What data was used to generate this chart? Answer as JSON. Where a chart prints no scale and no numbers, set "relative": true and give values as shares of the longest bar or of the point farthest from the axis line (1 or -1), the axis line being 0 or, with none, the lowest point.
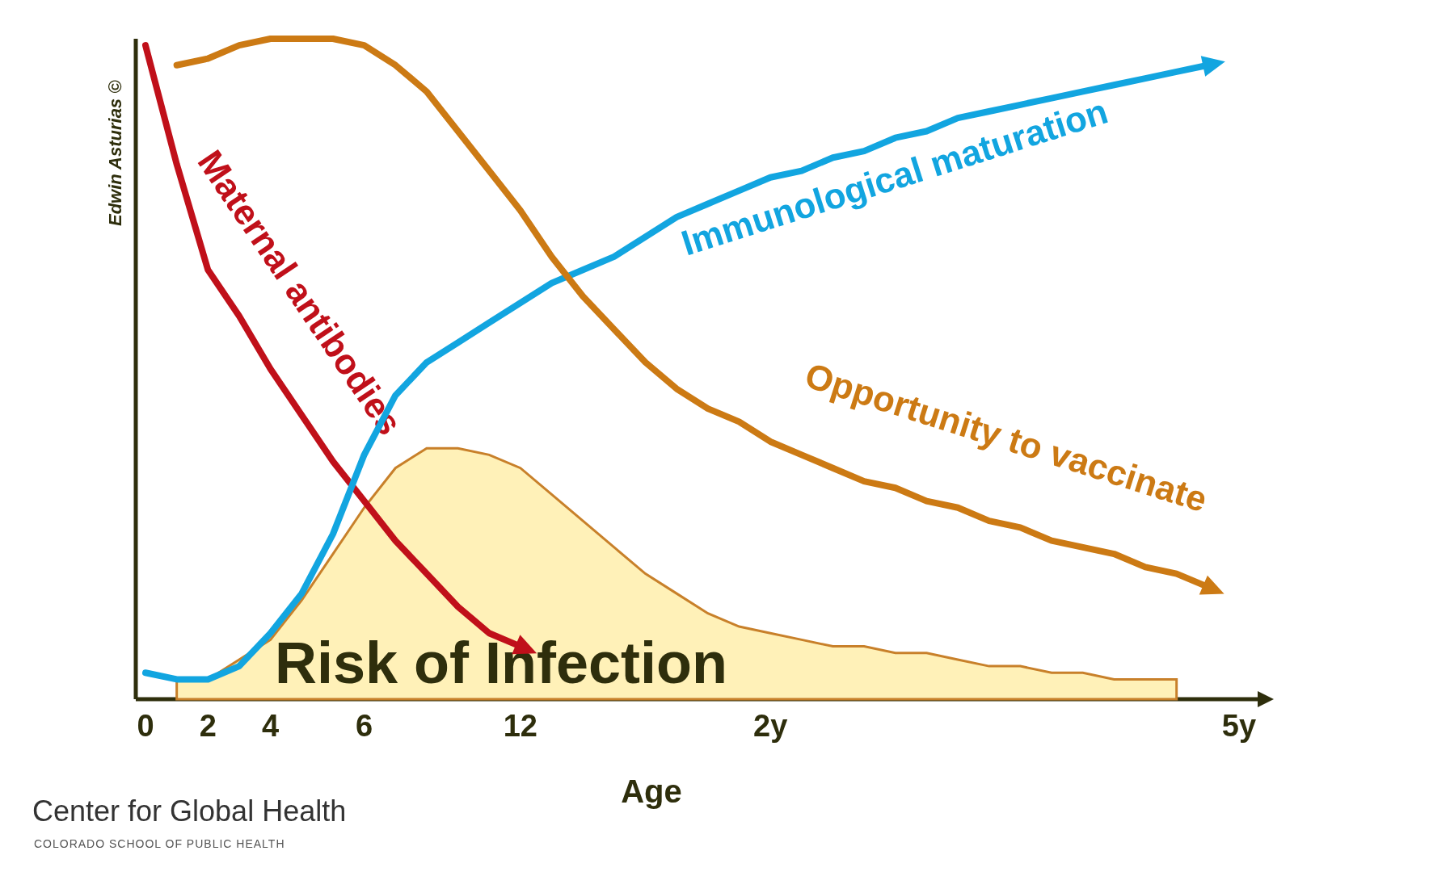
{
  "chart_data": {
    "type": "line",
    "relative": true,
    "xlabel": "Age",
    "tick_labels": "x",
    "grid": false,
    "categories": [
      "0",
      null,
      "2",
      null,
      "4",
      null,
      null,
      "6",
      null,
      null,
      null,
      null,
      "12",
      null,
      null,
      null,
      null,
      null,
      null,
      null,
      "2y",
      null,
      null,
      null,
      null,
      null,
      null,
      null,
      null,
      null,
      null,
      null,
      null,
      null,
      null,
      "5y"
    ],
    "series": [
      {
        "name": "Risk of Infection",
        "type": "area",
        "color": "#fff1b8",
        "values": [
          null,
          0.03,
          0.03,
          0.06,
          0.09,
          0.15,
          0.22,
          0.29,
          0.35,
          0.38,
          0.38,
          0.37,
          0.35,
          0.31,
          0.27,
          0.23,
          0.19,
          0.16,
          0.13,
          0.11,
          0.1,
          0.09,
          0.08,
          0.08,
          0.07,
          0.07,
          0.06,
          0.05,
          0.05,
          0.04,
          0.04,
          0.03,
          0.03,
          0.03,
          null,
          null
        ]
      },
      {
        "name": "Maternal antibodies",
        "color": "#c0101a",
        "values": [
          0.99,
          0.81,
          0.65,
          0.58,
          0.5,
          0.43,
          0.36,
          0.3,
          0.24,
          0.19,
          0.14,
          0.1,
          0.08,
          null,
          null,
          null,
          null,
          null,
          null,
          null,
          null,
          null,
          null,
          null,
          null,
          null,
          null,
          null,
          null,
          null,
          null,
          null,
          null,
          null,
          null,
          null
        ]
      },
      {
        "name": "Immunological maturation",
        "color": "#12a5e0",
        "values": [
          0.04,
          0.03,
          0.03,
          0.05,
          0.1,
          0.16,
          0.25,
          0.37,
          0.46,
          0.51,
          0.54,
          0.57,
          0.6,
          0.63,
          0.65,
          0.67,
          0.7,
          0.73,
          0.75,
          0.77,
          0.79,
          0.8,
          0.82,
          0.83,
          0.85,
          0.86,
          0.88,
          0.89,
          0.9,
          0.91,
          0.92,
          0.93,
          0.94,
          0.95,
          0.96,
          null
        ]
      },
      {
        "name": "Opportunity to vaccinate",
        "color": "#cc7a14",
        "values": [
          null,
          0.96,
          0.97,
          0.99,
          1,
          1,
          1,
          0.99,
          0.96,
          0.92,
          0.86,
          0.8,
          0.74,
          0.67,
          0.61,
          0.56,
          0.51,
          0.47,
          0.44,
          0.42,
          0.39,
          0.37,
          0.35,
          0.33,
          0.32,
          0.3,
          0.29,
          0.27,
          0.26,
          0.24,
          0.23,
          0.22,
          0.2,
          0.19,
          0.17,
          null
        ]
      }
    ],
    "annotations": [
      "Edwin Asturias ©",
      "Center for Global Health",
      "COLORADO SCHOOL OF PUBLIC HEALTH"
    ]
  }
}
